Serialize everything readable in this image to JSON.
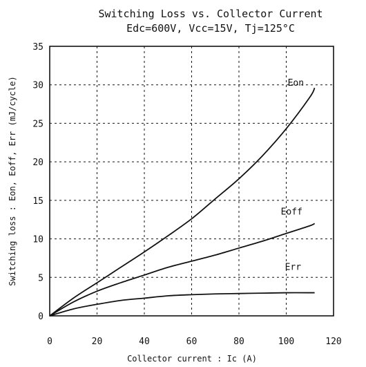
{
  "chart_data": {
    "type": "line",
    "title": "Switching Loss vs. Collector Current",
    "subtitle": "Edc=600V, Vcc=15V, Tj=125°C",
    "xlabel": "Collector current : Ic   (A)",
    "ylabel": "Switching loss : Eon, Eoff, Err   (mJ/cycle)",
    "xlim": [
      0,
      120
    ],
    "ylim": [
      0,
      35
    ],
    "xticks": [
      0,
      20,
      40,
      60,
      80,
      100,
      120
    ],
    "yticks": [
      0,
      5,
      10,
      15,
      20,
      25,
      30,
      35
    ],
    "grid": true,
    "series": [
      {
        "name": "Eon",
        "x": [
          0,
          10,
          20,
          30,
          40,
          50,
          60,
          70,
          80,
          90,
          100,
          110,
          112
        ],
        "y": [
          0,
          2.3,
          4.3,
          6.3,
          8.3,
          10.4,
          12.6,
          15.2,
          17.8,
          20.8,
          24.3,
          28.4,
          29.6
        ]
      },
      {
        "name": "Eoff",
        "x": [
          0,
          10,
          20,
          30,
          40,
          50,
          60,
          70,
          80,
          90,
          100,
          110,
          112
        ],
        "y": [
          0,
          1.8,
          3.2,
          4.3,
          5.3,
          6.3,
          7.1,
          7.9,
          8.8,
          9.7,
          10.7,
          11.7,
          12.0
        ]
      },
      {
        "name": "Err",
        "x": [
          0,
          10,
          20,
          30,
          40,
          50,
          60,
          70,
          80,
          90,
          100,
          110,
          112
        ],
        "y": [
          0,
          0.9,
          1.5,
          2.0,
          2.3,
          2.6,
          2.75,
          2.85,
          2.9,
          2.95,
          3.0,
          3.0,
          3.0
        ]
      }
    ]
  }
}
